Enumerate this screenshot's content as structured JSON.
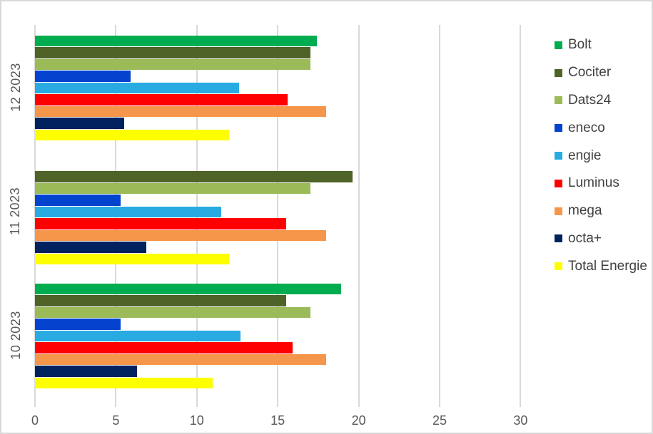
{
  "chart_data": {
    "type": "bar",
    "orientation": "horizontal",
    "title": "",
    "xlabel": "",
    "ylabel": "",
    "categories": [
      "12 2023",
      "11 2023",
      "10 2023"
    ],
    "series": [
      {
        "name": "Bolt",
        "color": "#00AC50",
        "values": [
          17.4,
          0,
          18.9
        ]
      },
      {
        "name": "Cociter",
        "color": "#4F6228",
        "values": [
          17.0,
          19.6,
          15.5
        ]
      },
      {
        "name": "Dats24",
        "color": "#9BBB59",
        "values": [
          17.0,
          17.0,
          17.0
        ]
      },
      {
        "name": "eneco",
        "color": "#0343CE",
        "values": [
          5.9,
          5.3,
          5.3
        ]
      },
      {
        "name": "engie",
        "color": "#29ABE2",
        "values": [
          12.6,
          11.5,
          12.7
        ]
      },
      {
        "name": "Luminus",
        "color": "#FE0000",
        "values": [
          15.6,
          15.5,
          15.9
        ]
      },
      {
        "name": "mega",
        "color": "#F6964A",
        "values": [
          18.0,
          18.0,
          18.0
        ]
      },
      {
        "name": "octa+",
        "color": "#02215F",
        "values": [
          5.5,
          6.9,
          6.3
        ]
      },
      {
        "name": "Total Energie",
        "color": "#FDFF00",
        "values": [
          12.0,
          12.0,
          11.0
        ]
      }
    ],
    "x_ticks": [
      0,
      5,
      10,
      15,
      20,
      25,
      30
    ],
    "xlim": [
      0,
      31.2
    ],
    "grid": true,
    "legend_position": "right"
  },
  "colors": {
    "gridline": "#d9d9d9",
    "border": "#d9d9d9",
    "axis_text": "#595959",
    "legend_text": "#404040",
    "background": "#ffffff"
  }
}
